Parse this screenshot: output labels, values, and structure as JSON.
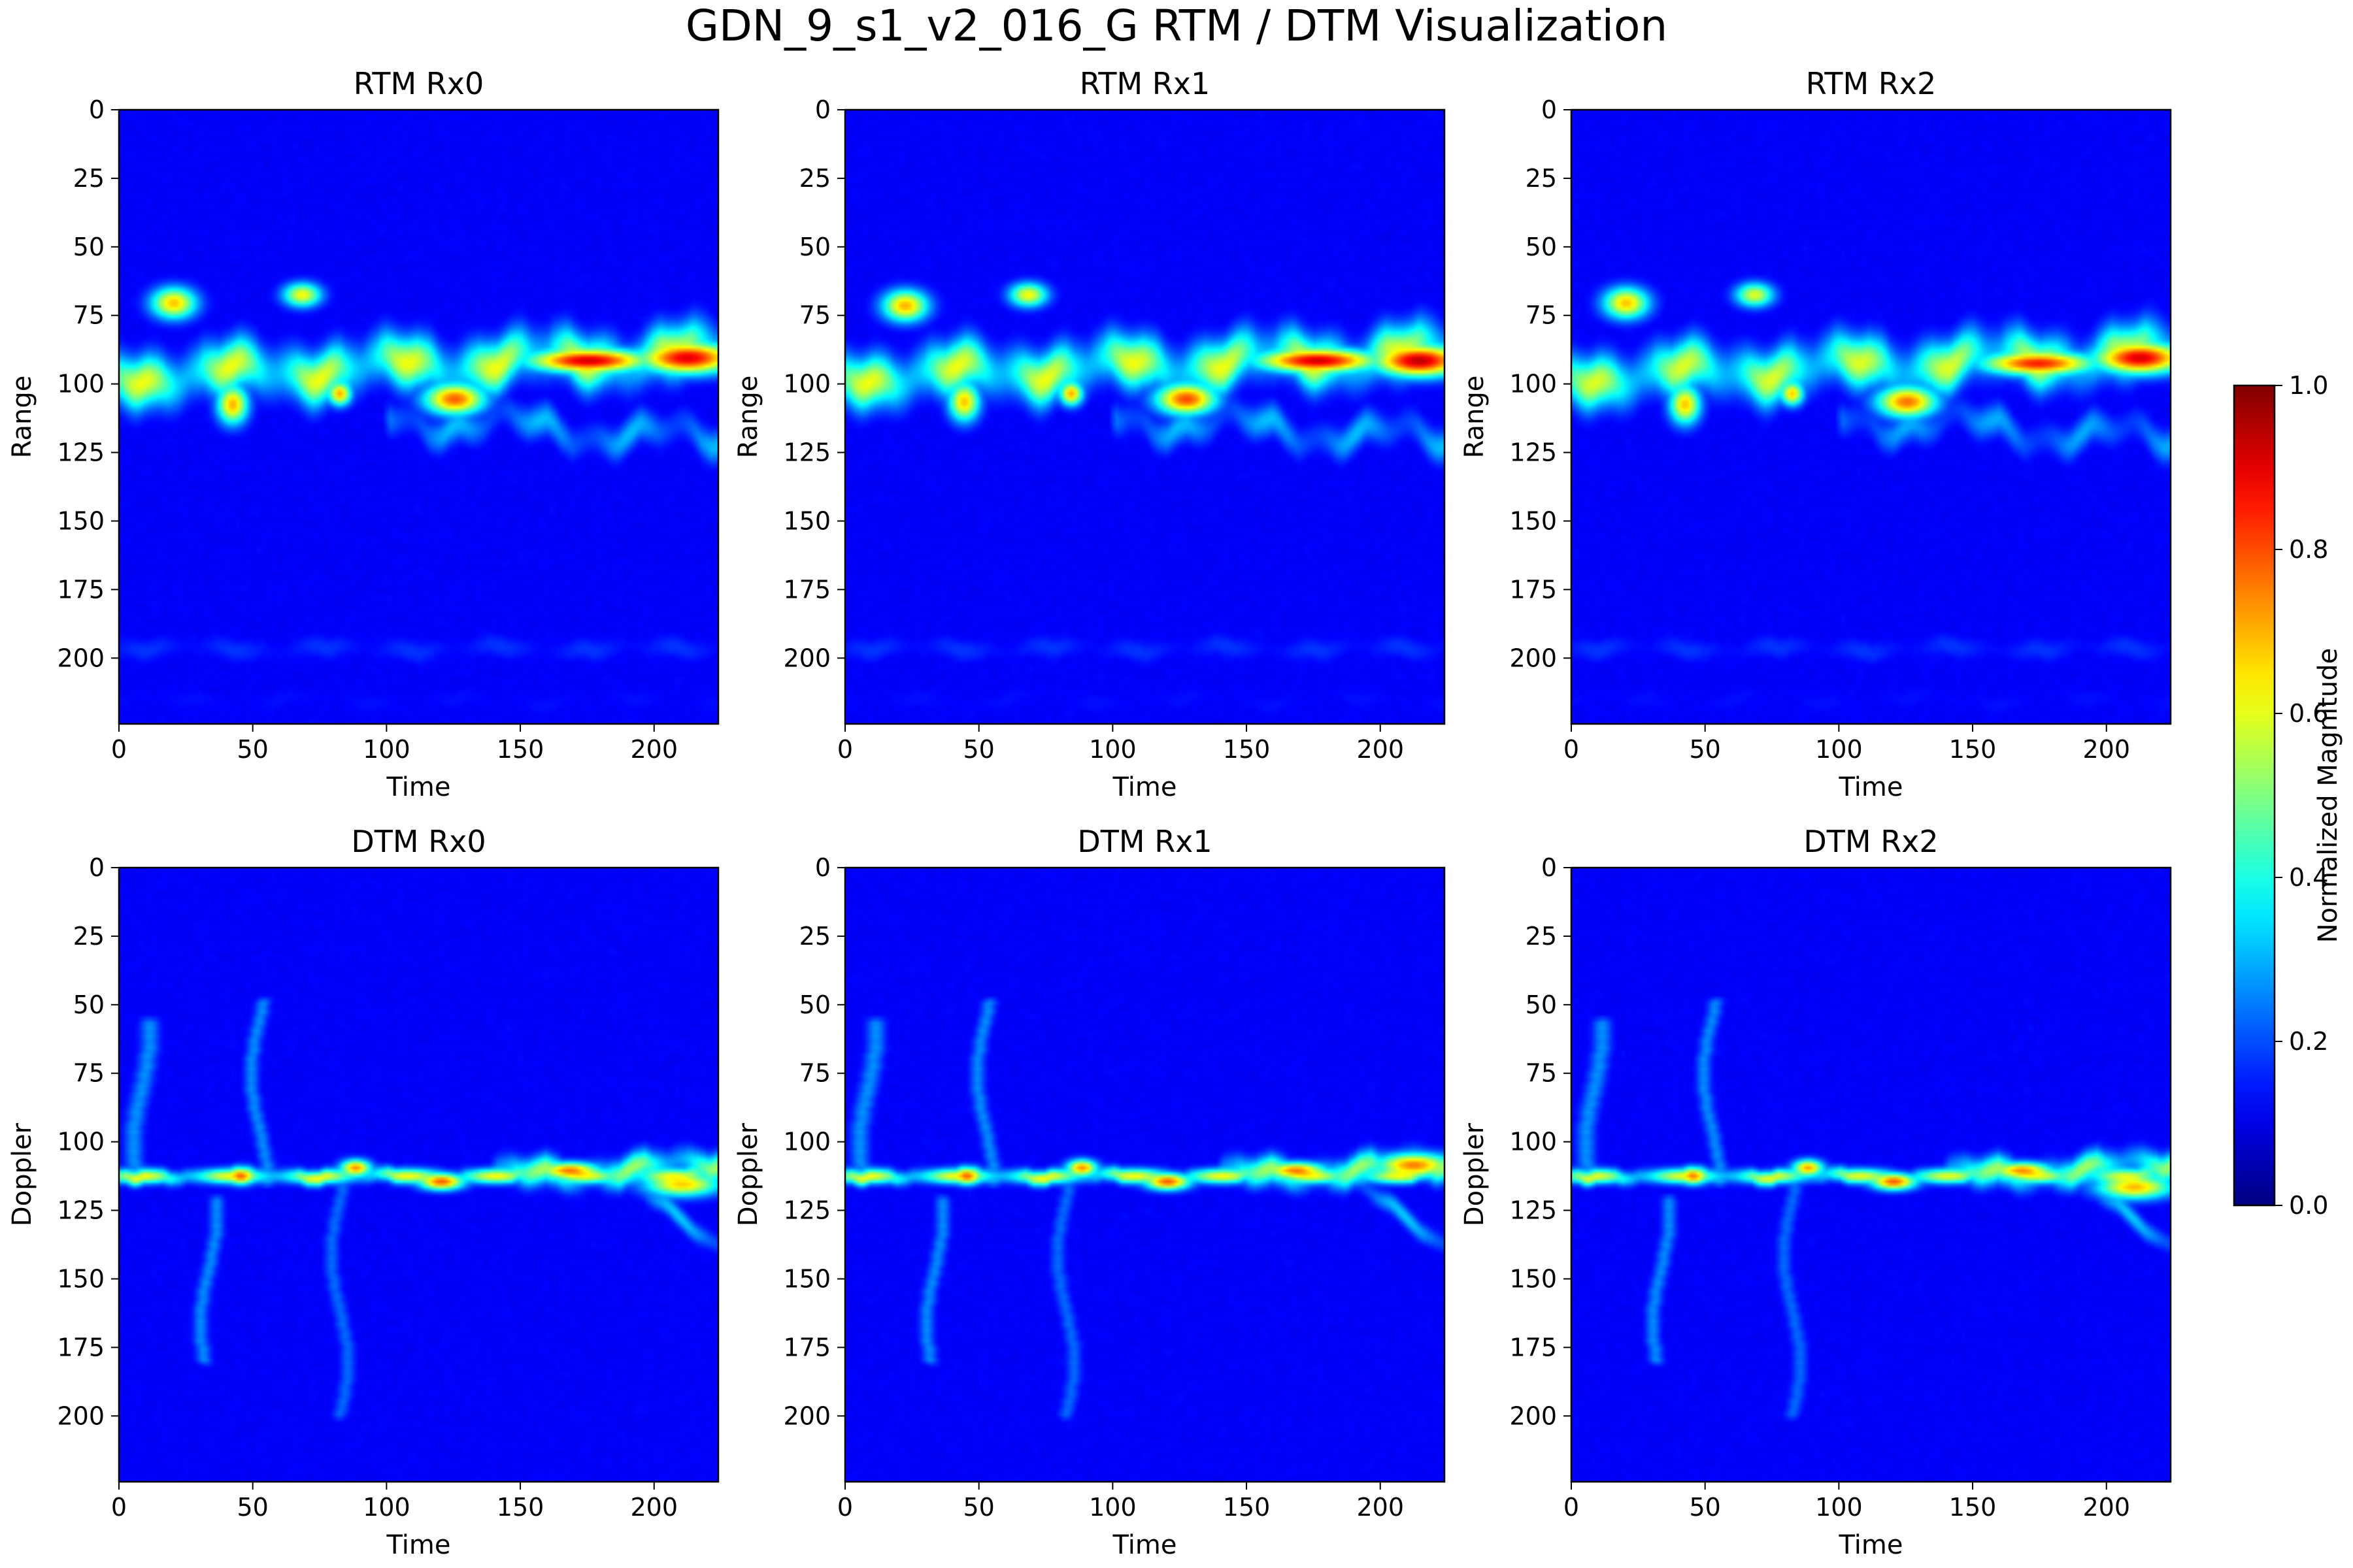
{
  "figure": {
    "title": "GDN_9_s1_v2_016_G RTM / DTM Visualization"
  },
  "colorbar": {
    "label": "Normalized Magnitude",
    "range": [
      0.0,
      1.0
    ],
    "ticks": [
      "0.0",
      "0.2",
      "0.4",
      "0.6",
      "0.8",
      "1.0"
    ],
    "colormap": "jet"
  },
  "chart_data": [
    {
      "type": "heatmap",
      "title": "RTM Rx0",
      "xlabel": "Time",
      "ylabel": "Range",
      "xlim": [
        0,
        224
      ],
      "ylim": [
        224,
        0
      ],
      "xticks": [
        "0",
        "50",
        "100",
        "150",
        "200"
      ],
      "yticks": [
        "0",
        "25",
        "50",
        "75",
        "100",
        "125",
        "150",
        "175",
        "200"
      ],
      "features": [
        {
          "kind": "band",
          "x": [
            0,
            224
          ],
          "y_start": 97,
          "y_end": 88,
          "width": 11,
          "value": 0.62,
          "wobble": 6
        },
        {
          "kind": "band",
          "x": [
            100,
            224
          ],
          "y_start": 112,
          "y_end": 120,
          "width": 7,
          "value": 0.32,
          "wobble": 8
        },
        {
          "kind": "band",
          "x": [
            0,
            224
          ],
          "y_start": 196,
          "y_end": 196,
          "width": 5,
          "value": 0.18,
          "wobble": 2
        },
        {
          "kind": "band",
          "x": [
            0,
            224
          ],
          "y_start": 215,
          "y_end": 215,
          "width": 5,
          "value": 0.14,
          "wobble": 3
        },
        {
          "kind": "blob",
          "x": 20,
          "y": 70,
          "rx": 6,
          "ry": 4,
          "value": 0.7
        },
        {
          "kind": "blob",
          "x": 68,
          "y": 67,
          "rx": 5,
          "ry": 3,
          "value": 0.65
        },
        {
          "kind": "blob",
          "x": 42,
          "y": 107,
          "rx": 4,
          "ry": 5,
          "value": 0.72
        },
        {
          "kind": "blob",
          "x": 82,
          "y": 103,
          "rx": 3,
          "ry": 3,
          "value": 0.75
        },
        {
          "kind": "blob",
          "x": 125,
          "y": 105,
          "rx": 8,
          "ry": 4,
          "value": 0.8
        },
        {
          "kind": "blob",
          "x": 175,
          "y": 91,
          "rx": 16,
          "ry": 3,
          "value": 0.95
        },
        {
          "kind": "blob",
          "x": 212,
          "y": 90,
          "rx": 13,
          "ry": 4,
          "value": 0.92
        }
      ]
    },
    {
      "type": "heatmap",
      "title": "RTM Rx1",
      "xlabel": "Time",
      "ylabel": "Range",
      "xlim": [
        0,
        224
      ],
      "ylim": [
        224,
        0
      ],
      "xticks": [
        "0",
        "50",
        "100",
        "150",
        "200"
      ],
      "yticks": [
        "0",
        "25",
        "50",
        "75",
        "100",
        "125",
        "150",
        "175",
        "200"
      ],
      "features": [
        {
          "kind": "band",
          "x": [
            0,
            224
          ],
          "y_start": 97,
          "y_end": 88,
          "width": 11,
          "value": 0.62,
          "wobble": 6
        },
        {
          "kind": "band",
          "x": [
            100,
            224
          ],
          "y_start": 112,
          "y_end": 120,
          "width": 7,
          "value": 0.32,
          "wobble": 8
        },
        {
          "kind": "band",
          "x": [
            0,
            224
          ],
          "y_start": 196,
          "y_end": 196,
          "width": 5,
          "value": 0.18,
          "wobble": 2
        },
        {
          "kind": "band",
          "x": [
            0,
            224
          ],
          "y_start": 215,
          "y_end": 215,
          "width": 5,
          "value": 0.14,
          "wobble": 3
        },
        {
          "kind": "blob",
          "x": 22,
          "y": 71,
          "rx": 6,
          "ry": 4,
          "value": 0.72
        },
        {
          "kind": "blob",
          "x": 68,
          "y": 67,
          "rx": 5,
          "ry": 3,
          "value": 0.65
        },
        {
          "kind": "blob",
          "x": 44,
          "y": 106,
          "rx": 4,
          "ry": 5,
          "value": 0.7
        },
        {
          "kind": "blob",
          "x": 84,
          "y": 103,
          "rx": 3,
          "ry": 3,
          "value": 0.75
        },
        {
          "kind": "blob",
          "x": 127,
          "y": 105,
          "rx": 8,
          "ry": 4,
          "value": 0.82
        },
        {
          "kind": "blob",
          "x": 176,
          "y": 91,
          "rx": 16,
          "ry": 3,
          "value": 0.95
        },
        {
          "kind": "blob",
          "x": 214,
          "y": 91,
          "rx": 12,
          "ry": 4,
          "value": 0.96
        }
      ]
    },
    {
      "type": "heatmap",
      "title": "RTM Rx2",
      "xlabel": "Time",
      "ylabel": "Range",
      "xlim": [
        0,
        224
      ],
      "ylim": [
        224,
        0
      ],
      "xticks": [
        "0",
        "50",
        "100",
        "150",
        "200"
      ],
      "yticks": [
        "0",
        "25",
        "50",
        "75",
        "100",
        "125",
        "150",
        "175",
        "200"
      ],
      "features": [
        {
          "kind": "band",
          "x": [
            0,
            224
          ],
          "y_start": 97,
          "y_end": 88,
          "width": 11,
          "value": 0.6,
          "wobble": 6
        },
        {
          "kind": "band",
          "x": [
            100,
            224
          ],
          "y_start": 112,
          "y_end": 120,
          "width": 7,
          "value": 0.3,
          "wobble": 8
        },
        {
          "kind": "band",
          "x": [
            0,
            224
          ],
          "y_start": 196,
          "y_end": 196,
          "width": 5,
          "value": 0.18,
          "wobble": 2
        },
        {
          "kind": "band",
          "x": [
            0,
            224
          ],
          "y_start": 215,
          "y_end": 215,
          "width": 5,
          "value": 0.14,
          "wobble": 3
        },
        {
          "kind": "blob",
          "x": 20,
          "y": 70,
          "rx": 6,
          "ry": 4,
          "value": 0.7
        },
        {
          "kind": "blob",
          "x": 68,
          "y": 67,
          "rx": 5,
          "ry": 3,
          "value": 0.62
        },
        {
          "kind": "blob",
          "x": 42,
          "y": 107,
          "rx": 4,
          "ry": 5,
          "value": 0.7
        },
        {
          "kind": "blob",
          "x": 82,
          "y": 103,
          "rx": 3,
          "ry": 3,
          "value": 0.72
        },
        {
          "kind": "blob",
          "x": 125,
          "y": 106,
          "rx": 8,
          "ry": 4,
          "value": 0.78
        },
        {
          "kind": "blob",
          "x": 174,
          "y": 92,
          "rx": 15,
          "ry": 3,
          "value": 0.88
        },
        {
          "kind": "blob",
          "x": 212,
          "y": 90,
          "rx": 12,
          "ry": 4,
          "value": 0.93
        }
      ]
    },
    {
      "type": "heatmap",
      "title": "DTM Rx0",
      "xlabel": "Time",
      "ylabel": "Doppler",
      "xlim": [
        0,
        224
      ],
      "ylim": [
        224,
        0
      ],
      "xticks": [
        "0",
        "50",
        "100",
        "150",
        "200"
      ],
      "yticks": [
        "0",
        "25",
        "50",
        "75",
        "100",
        "125",
        "150",
        "175",
        "200"
      ],
      "features": [
        {
          "kind": "band",
          "x": [
            0,
            224
          ],
          "y_start": 112,
          "y_end": 112,
          "width": 3,
          "value": 0.68,
          "wobble": 1
        },
        {
          "kind": "band",
          "x": [
            140,
            224
          ],
          "y_start": 112,
          "y_end": 108,
          "width": 6,
          "value": 0.55,
          "wobble": 4
        },
        {
          "kind": "band",
          "x": [
            190,
            224
          ],
          "y_start": 115,
          "y_end": 137,
          "width": 4,
          "value": 0.35,
          "wobble": 3
        },
        {
          "kind": "streak",
          "x": 8,
          "y": [
            55,
            115
          ],
          "width": 4,
          "value": 0.3
        },
        {
          "kind": "streak",
          "x": 33,
          "y": [
            120,
            180
          ],
          "width": 3,
          "value": 0.3
        },
        {
          "kind": "streak",
          "x": 52,
          "y": [
            48,
            115
          ],
          "width": 3,
          "value": 0.3
        },
        {
          "kind": "streak",
          "x": 82,
          "y": [
            115,
            200
          ],
          "width": 3,
          "value": 0.26
        },
        {
          "kind": "blob",
          "x": 45,
          "y": 112,
          "rx": 4,
          "ry": 2,
          "value": 0.85
        },
        {
          "kind": "blob",
          "x": 88,
          "y": 109,
          "rx": 4,
          "ry": 2,
          "value": 0.8
        },
        {
          "kind": "blob",
          "x": 120,
          "y": 114,
          "rx": 6,
          "ry": 2,
          "value": 0.85
        },
        {
          "kind": "blob",
          "x": 168,
          "y": 110,
          "rx": 8,
          "ry": 2,
          "value": 0.82
        },
        {
          "kind": "blob",
          "x": 210,
          "y": 115,
          "rx": 10,
          "ry": 3,
          "value": 0.7
        }
      ]
    },
    {
      "type": "heatmap",
      "title": "DTM Rx1",
      "xlabel": "Time",
      "ylabel": "Doppler",
      "xlim": [
        0,
        224
      ],
      "ylim": [
        224,
        0
      ],
      "xticks": [
        "0",
        "50",
        "100",
        "150",
        "200"
      ],
      "yticks": [
        "0",
        "25",
        "50",
        "75",
        "100",
        "125",
        "150",
        "175",
        "200"
      ],
      "features": [
        {
          "kind": "band",
          "x": [
            0,
            224
          ],
          "y_start": 112,
          "y_end": 112,
          "width": 3,
          "value": 0.68,
          "wobble": 1
        },
        {
          "kind": "band",
          "x": [
            140,
            224
          ],
          "y_start": 112,
          "y_end": 108,
          "width": 6,
          "value": 0.55,
          "wobble": 4
        },
        {
          "kind": "band",
          "x": [
            190,
            224
          ],
          "y_start": 115,
          "y_end": 137,
          "width": 4,
          "value": 0.35,
          "wobble": 3
        },
        {
          "kind": "streak",
          "x": 8,
          "y": [
            55,
            115
          ],
          "width": 4,
          "value": 0.3
        },
        {
          "kind": "streak",
          "x": 33,
          "y": [
            120,
            180
          ],
          "width": 3,
          "value": 0.3
        },
        {
          "kind": "streak",
          "x": 52,
          "y": [
            48,
            115
          ],
          "width": 3,
          "value": 0.3
        },
        {
          "kind": "streak",
          "x": 82,
          "y": [
            115,
            200
          ],
          "width": 3,
          "value": 0.26
        },
        {
          "kind": "blob",
          "x": 45,
          "y": 112,
          "rx": 4,
          "ry": 2,
          "value": 0.85
        },
        {
          "kind": "blob",
          "x": 88,
          "y": 109,
          "rx": 4,
          "ry": 2,
          "value": 0.8
        },
        {
          "kind": "blob",
          "x": 120,
          "y": 114,
          "rx": 6,
          "ry": 2,
          "value": 0.85
        },
        {
          "kind": "blob",
          "x": 168,
          "y": 110,
          "rx": 8,
          "ry": 2,
          "value": 0.82
        },
        {
          "kind": "blob",
          "x": 212,
          "y": 108,
          "rx": 10,
          "ry": 3,
          "value": 0.78
        }
      ]
    },
    {
      "type": "heatmap",
      "title": "DTM Rx2",
      "xlabel": "Time",
      "ylabel": "Doppler",
      "xlim": [
        0,
        224
      ],
      "ylim": [
        224,
        0
      ],
      "xticks": [
        "0",
        "50",
        "100",
        "150",
        "200"
      ],
      "yticks": [
        "0",
        "25",
        "50",
        "75",
        "100",
        "125",
        "150",
        "175",
        "200"
      ],
      "features": [
        {
          "kind": "band",
          "x": [
            0,
            224
          ],
          "y_start": 112,
          "y_end": 112,
          "width": 3,
          "value": 0.66,
          "wobble": 1
        },
        {
          "kind": "band",
          "x": [
            140,
            224
          ],
          "y_start": 112,
          "y_end": 108,
          "width": 6,
          "value": 0.55,
          "wobble": 4
        },
        {
          "kind": "band",
          "x": [
            190,
            224
          ],
          "y_start": 115,
          "y_end": 137,
          "width": 4,
          "value": 0.35,
          "wobble": 3
        },
        {
          "kind": "streak",
          "x": 8,
          "y": [
            55,
            115
          ],
          "width": 4,
          "value": 0.3
        },
        {
          "kind": "streak",
          "x": 33,
          "y": [
            120,
            180
          ],
          "width": 3,
          "value": 0.3
        },
        {
          "kind": "streak",
          "x": 52,
          "y": [
            48,
            115
          ],
          "width": 3,
          "value": 0.3
        },
        {
          "kind": "streak",
          "x": 82,
          "y": [
            115,
            200
          ],
          "width": 3,
          "value": 0.26
        },
        {
          "kind": "blob",
          "x": 45,
          "y": 112,
          "rx": 4,
          "ry": 2,
          "value": 0.82
        },
        {
          "kind": "blob",
          "x": 88,
          "y": 109,
          "rx": 4,
          "ry": 2,
          "value": 0.78
        },
        {
          "kind": "blob",
          "x": 120,
          "y": 114,
          "rx": 6,
          "ry": 2,
          "value": 0.85
        },
        {
          "kind": "blob",
          "x": 168,
          "y": 110,
          "rx": 8,
          "ry": 2,
          "value": 0.8
        },
        {
          "kind": "blob",
          "x": 210,
          "y": 116,
          "rx": 10,
          "ry": 3,
          "value": 0.72
        }
      ]
    }
  ]
}
